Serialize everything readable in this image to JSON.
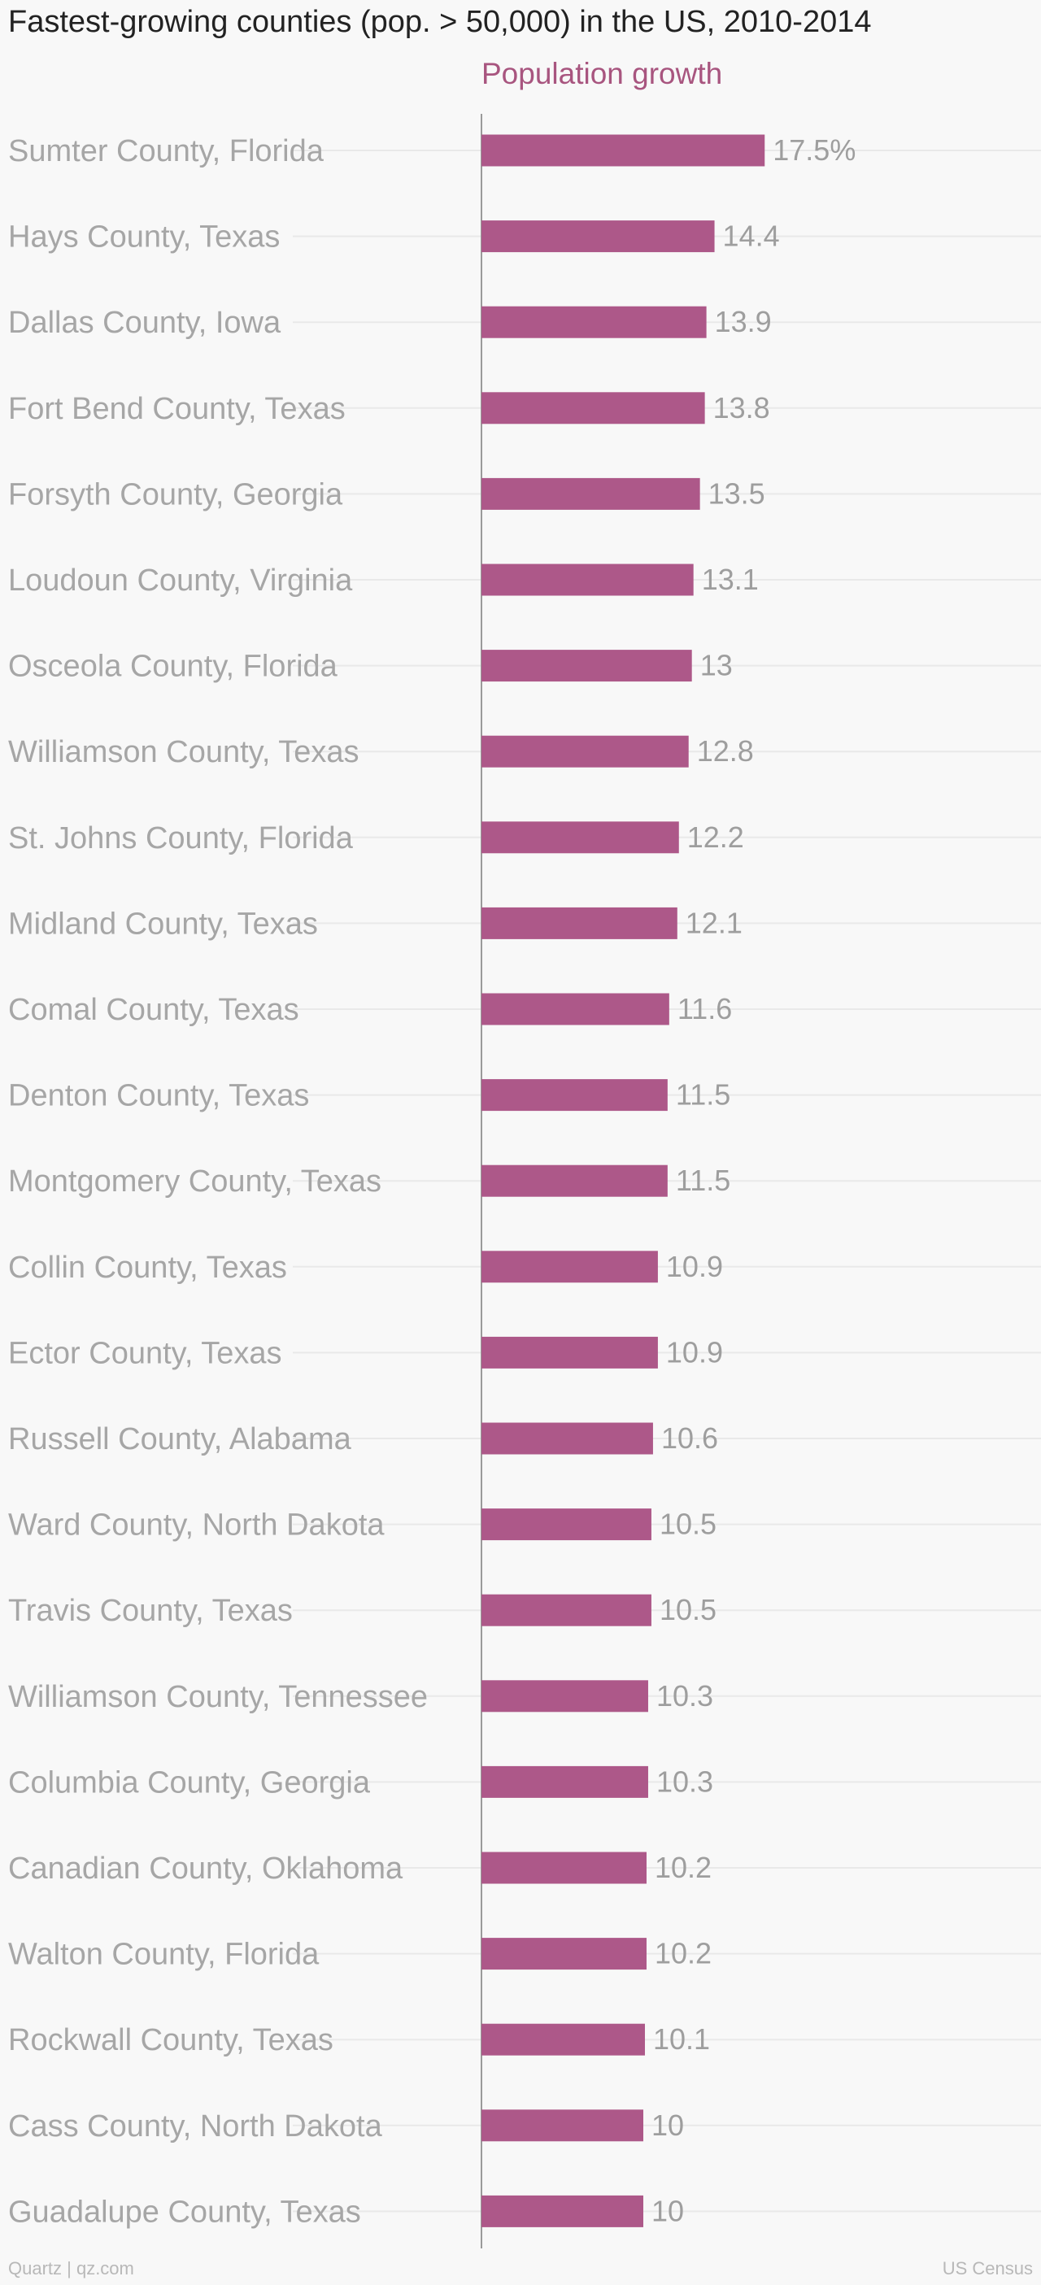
{
  "chart_data": {
    "type": "bar",
    "orientation": "horizontal",
    "title": "Fastest-growing counties (pop. > 50,000) in the US, 2010-2014",
    "series_name": "Population growth",
    "value_suffix_first": "%",
    "bar_color": "#ad5889",
    "xlim": [
      0,
      20
    ],
    "categories": [
      "Sumter County, Florida",
      "Hays County, Texas",
      "Dallas County, Iowa",
      "Fort Bend County, Texas",
      "Forsyth County, Georgia",
      "Loudoun County, Virginia",
      "Osceola County, Florida",
      "Williamson County, Texas",
      "St. Johns County, Florida",
      "Midland County, Texas",
      "Comal County, Texas",
      "Denton County, Texas",
      "Montgomery County, Texas",
      "Collin County, Texas",
      "Ector County, Texas",
      "Russell County, Alabama",
      "Ward County, North Dakota",
      "Travis County, Texas",
      "Williamson County, Tennessee",
      "Columbia County, Georgia",
      "Canadian County, Oklahoma",
      "Walton County, Florida",
      "Rockwall County, Texas",
      "Cass County, North Dakota",
      "Guadalupe County, Texas"
    ],
    "values": [
      17.5,
      14.4,
      13.9,
      13.8,
      13.5,
      13.1,
      13,
      12.8,
      12.2,
      12.1,
      11.6,
      11.5,
      11.5,
      10.9,
      10.9,
      10.6,
      10.5,
      10.5,
      10.3,
      10.3,
      10.2,
      10.2,
      10.1,
      10,
      10
    ],
    "value_labels": [
      "17.5%",
      "14.4",
      "13.9",
      "13.8",
      "13.5",
      "13.1",
      "13",
      "12.8",
      "12.2",
      "12.1",
      "11.6",
      "11.5",
      "11.5",
      "10.9",
      "10.9",
      "10.6",
      "10.5",
      "10.5",
      "10.3",
      "10.3",
      "10.2",
      "10.2",
      "10.1",
      "10",
      "10"
    ]
  },
  "footer": {
    "credit": "Quartz | qz.com",
    "source": "US Census"
  }
}
